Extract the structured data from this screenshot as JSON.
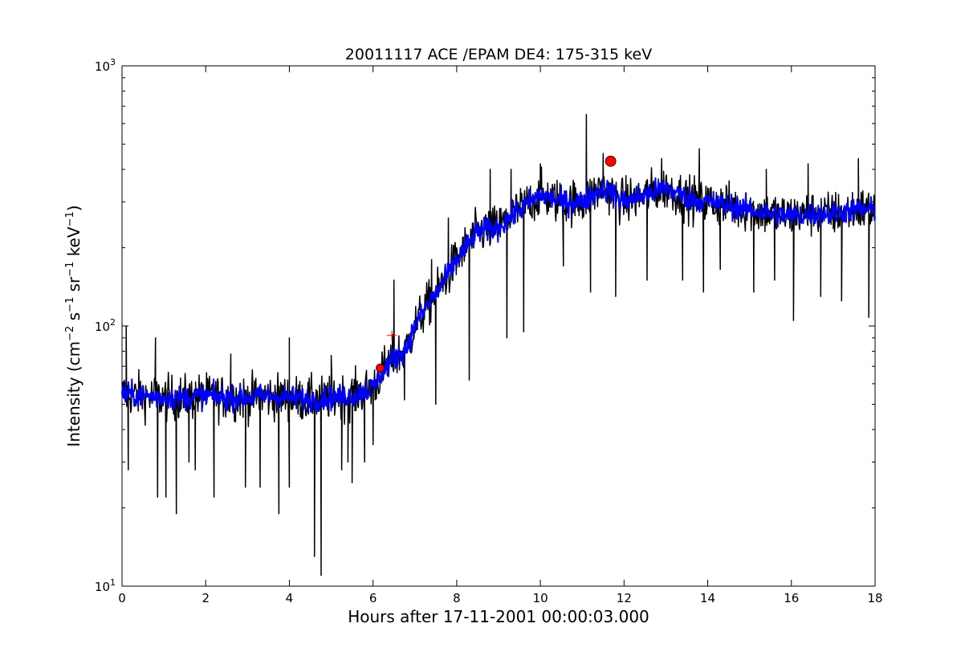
{
  "chart_data": {
    "type": "line",
    "title": "20011117 ACE /EPAM DE4: 175-315 keV",
    "xlabel": "Hours after 17-11-2001 00:00:03.000",
    "ylabel": {
      "prefix": "Intensity (cm",
      "sup1": "−2",
      "mid1": " s",
      "sup2": "−1",
      "mid2": " sr",
      "sup3": "−1",
      "mid3": " keV",
      "sup4": "−1",
      "suffix": ")"
    },
    "xlim": [
      0,
      18
    ],
    "ylim": [
      10,
      1000
    ],
    "yscale": "log",
    "x_ticks": [
      "0",
      "2",
      "4",
      "6",
      "8",
      "10",
      "12",
      "14",
      "16",
      "18"
    ],
    "y_ticks": [
      {
        "base": "10",
        "exp": "1"
      },
      {
        "base": "10",
        "exp": "2"
      },
      {
        "base": "10",
        "exp": "3"
      }
    ],
    "grid": false,
    "series": [
      {
        "role": "raw",
        "color": "#000000",
        "x": [
          0,
          0.5,
          1,
          1.5,
          2,
          2.5,
          3,
          3.5,
          4,
          4.5,
          5,
          5.5,
          6,
          6.2,
          6.5,
          6.8,
          7,
          7.3,
          7.6,
          8,
          8.5,
          9,
          9.5,
          10,
          10.5,
          11,
          11.5,
          12,
          12.5,
          13,
          13.5,
          14,
          14.5,
          15,
          15.5,
          16,
          16.5,
          17,
          17.5,
          18
        ],
        "values": [
          55,
          54,
          53,
          53,
          54,
          53,
          53,
          54,
          53,
          52,
          53,
          54,
          58,
          66,
          75,
          82,
          100,
          120,
          140,
          180,
          230,
          240,
          280,
          320,
          300,
          300,
          340,
          300,
          320,
          340,
          310,
          300,
          290,
          280,
          270,
          265,
          270,
          270,
          280,
          280
        ],
        "spikes_low": [
          [
            0.15,
            28
          ],
          [
            0.85,
            22
          ],
          [
            1.05,
            22
          ],
          [
            1.3,
            19
          ],
          [
            1.6,
            30
          ],
          [
            1.75,
            28
          ],
          [
            2.2,
            22
          ],
          [
            2.95,
            24
          ],
          [
            3.3,
            24
          ],
          [
            3.75,
            19
          ],
          [
            4.0,
            24
          ],
          [
            4.6,
            13
          ],
          [
            4.76,
            11
          ],
          [
            5.25,
            28
          ],
          [
            5.4,
            30
          ],
          [
            5.5,
            25
          ],
          [
            5.8,
            30
          ],
          [
            6.0,
            35
          ],
          [
            6.75,
            52
          ],
          [
            7.5,
            50
          ],
          [
            8.3,
            62
          ],
          [
            9.2,
            90
          ],
          [
            9.6,
            95
          ],
          [
            10.55,
            170
          ],
          [
            11.2,
            135
          ],
          [
            11.8,
            130
          ],
          [
            12.55,
            150
          ],
          [
            13.4,
            150
          ],
          [
            13.9,
            135
          ],
          [
            14.3,
            165
          ],
          [
            15.1,
            135
          ],
          [
            15.6,
            150
          ],
          [
            16.05,
            105
          ],
          [
            16.7,
            130
          ],
          [
            17.2,
            125
          ],
          [
            17.85,
            108
          ]
        ],
        "spikes_high": [
          [
            0.1,
            100
          ],
          [
            0.8,
            90
          ],
          [
            2.6,
            78
          ],
          [
            4.0,
            90
          ],
          [
            5.0,
            77
          ],
          [
            6.5,
            150
          ],
          [
            7.4,
            180
          ],
          [
            7.8,
            260
          ],
          [
            8.8,
            400
          ],
          [
            9.3,
            400
          ],
          [
            10.0,
            420
          ],
          [
            11.1,
            650
          ],
          [
            11.5,
            460
          ],
          [
            12.9,
            440
          ],
          [
            13.8,
            480
          ],
          [
            15.4,
            400
          ],
          [
            16.4,
            420
          ],
          [
            17.6,
            440
          ]
        ]
      },
      {
        "role": "smoothed",
        "color": "#0000ff",
        "x": [
          0,
          0.5,
          1,
          1.5,
          2,
          2.5,
          3,
          3.5,
          4,
          4.5,
          5,
          5.5,
          6,
          6.2,
          6.5,
          6.8,
          7,
          7.3,
          7.6,
          8,
          8.5,
          9,
          9.5,
          10,
          10.5,
          11,
          11.5,
          12,
          12.5,
          13,
          13.5,
          14,
          14.5,
          15,
          15.5,
          16,
          16.5,
          17,
          17.5,
          18
        ],
        "values": [
          55,
          54,
          53,
          53,
          54,
          53,
          53,
          54,
          53,
          52,
          53,
          54,
          58,
          66,
          75,
          82,
          100,
          120,
          140,
          180,
          230,
          240,
          280,
          320,
          300,
          300,
          340,
          300,
          320,
          340,
          310,
          300,
          290,
          280,
          270,
          265,
          270,
          270,
          280,
          280
        ]
      }
    ],
    "markers": [
      {
        "type": "circle",
        "color": "#ff0000",
        "x": 6.17,
        "y": 69,
        "size": "small"
      },
      {
        "type": "plus",
        "color": "#ff0000",
        "x": 6.45,
        "y": 92
      },
      {
        "type": "circle",
        "color": "#ff0000",
        "x": 11.68,
        "y": 430,
        "size": "large"
      }
    ]
  }
}
